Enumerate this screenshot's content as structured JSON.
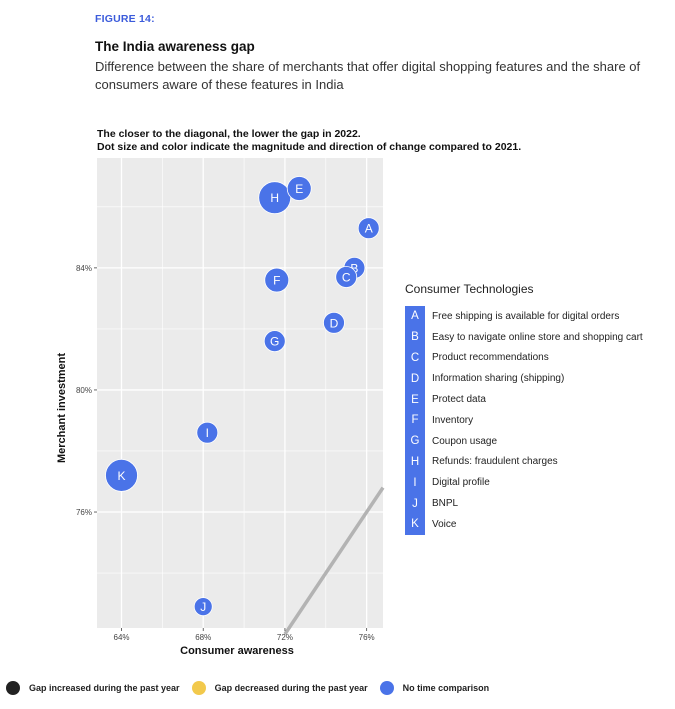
{
  "figure_label": "FIGURE 14:",
  "title": "The India awareness gap",
  "subtitle": "Difference between the share of merchants that offer digital shopping features and the share of consumers aware of these features in India",
  "chart_note": [
    "The closer to the diagonal, the lower the gap in 2022.",
    "Dot size and color indicate the magnitude and direction of change compared to 2021."
  ],
  "colors": {
    "no_comparison": "#4a73e8",
    "increased": "#222222",
    "decreased": "#f2c94c",
    "panel": "#ebebeb",
    "diagonal": "#b3b3b3"
  },
  "chart_data": {
    "type": "scatter",
    "xlabel": "Consumer awareness",
    "ylabel": "Merchant investment",
    "xlim": [
      62.8,
      76.8
    ],
    "ylim": [
      72.2,
      87.6
    ],
    "x_ticks": [
      64,
      68,
      72,
      76
    ],
    "x_tick_labels": [
      "64%",
      "68%",
      "72%",
      "76%"
    ],
    "y_ticks": [
      76,
      80,
      84
    ],
    "y_tick_labels": [
      "76%",
      "80%",
      "84%"
    ],
    "diagonal": [
      [
        72,
        72
      ],
      [
        76.8,
        76.8
      ]
    ],
    "points": [
      {
        "label": "A",
        "x": 76.1,
        "y": 85.3,
        "size": "small",
        "change": "no_comparison"
      },
      {
        "label": "B",
        "x": 75.4,
        "y": 84.0,
        "size": "small",
        "change": "no_comparison"
      },
      {
        "label": "C",
        "x": 75.0,
        "y": 83.7,
        "size": "small",
        "change": "no_comparison"
      },
      {
        "label": "D",
        "x": 74.4,
        "y": 82.2,
        "size": "small",
        "change": "no_comparison"
      },
      {
        "label": "E",
        "x": 72.7,
        "y": 86.6,
        "size": "medium",
        "change": "no_comparison"
      },
      {
        "label": "F",
        "x": 71.6,
        "y": 83.6,
        "size": "medium",
        "change": "no_comparison"
      },
      {
        "label": "G",
        "x": 71.5,
        "y": 81.6,
        "size": "small",
        "change": "no_comparison"
      },
      {
        "label": "H",
        "x": 71.5,
        "y": 86.3,
        "size": "large",
        "change": "no_comparison"
      },
      {
        "label": "I",
        "x": 68.2,
        "y": 78.6,
        "size": "small",
        "change": "no_comparison"
      },
      {
        "label": "J",
        "x": 68.0,
        "y": 72.9,
        "size": "xsmall",
        "change": "no_comparison"
      },
      {
        "label": "K",
        "x": 64.0,
        "y": 77.2,
        "size": "large",
        "change": "no_comparison"
      }
    ]
  },
  "legend": {
    "title": "Consumer Technologies",
    "items": [
      {
        "key": "A",
        "text": "Free shipping is available for digital orders"
      },
      {
        "key": "B",
        "text": "Easy to navigate online store and shopping cart"
      },
      {
        "key": "C",
        "text": "Product recommendations"
      },
      {
        "key": "D",
        "text": "Information sharing (shipping)"
      },
      {
        "key": "E",
        "text": "Protect data"
      },
      {
        "key": "F",
        "text": "Inventory"
      },
      {
        "key": "G",
        "text": "Coupon usage"
      },
      {
        "key": "H",
        "text": "Refunds: fraudulent charges"
      },
      {
        "key": "I",
        "text": "Digital profile"
      },
      {
        "key": "J",
        "text": "BNPL"
      },
      {
        "key": "K",
        "text": "Voice"
      }
    ]
  },
  "bottom_legend": [
    {
      "text": "Gap increased during the past year",
      "color": "#222222"
    },
    {
      "text": "Gap decreased during the past year",
      "color": "#f2c94c"
    },
    {
      "text": "No time comparison",
      "color": "#4a73e8"
    }
  ]
}
